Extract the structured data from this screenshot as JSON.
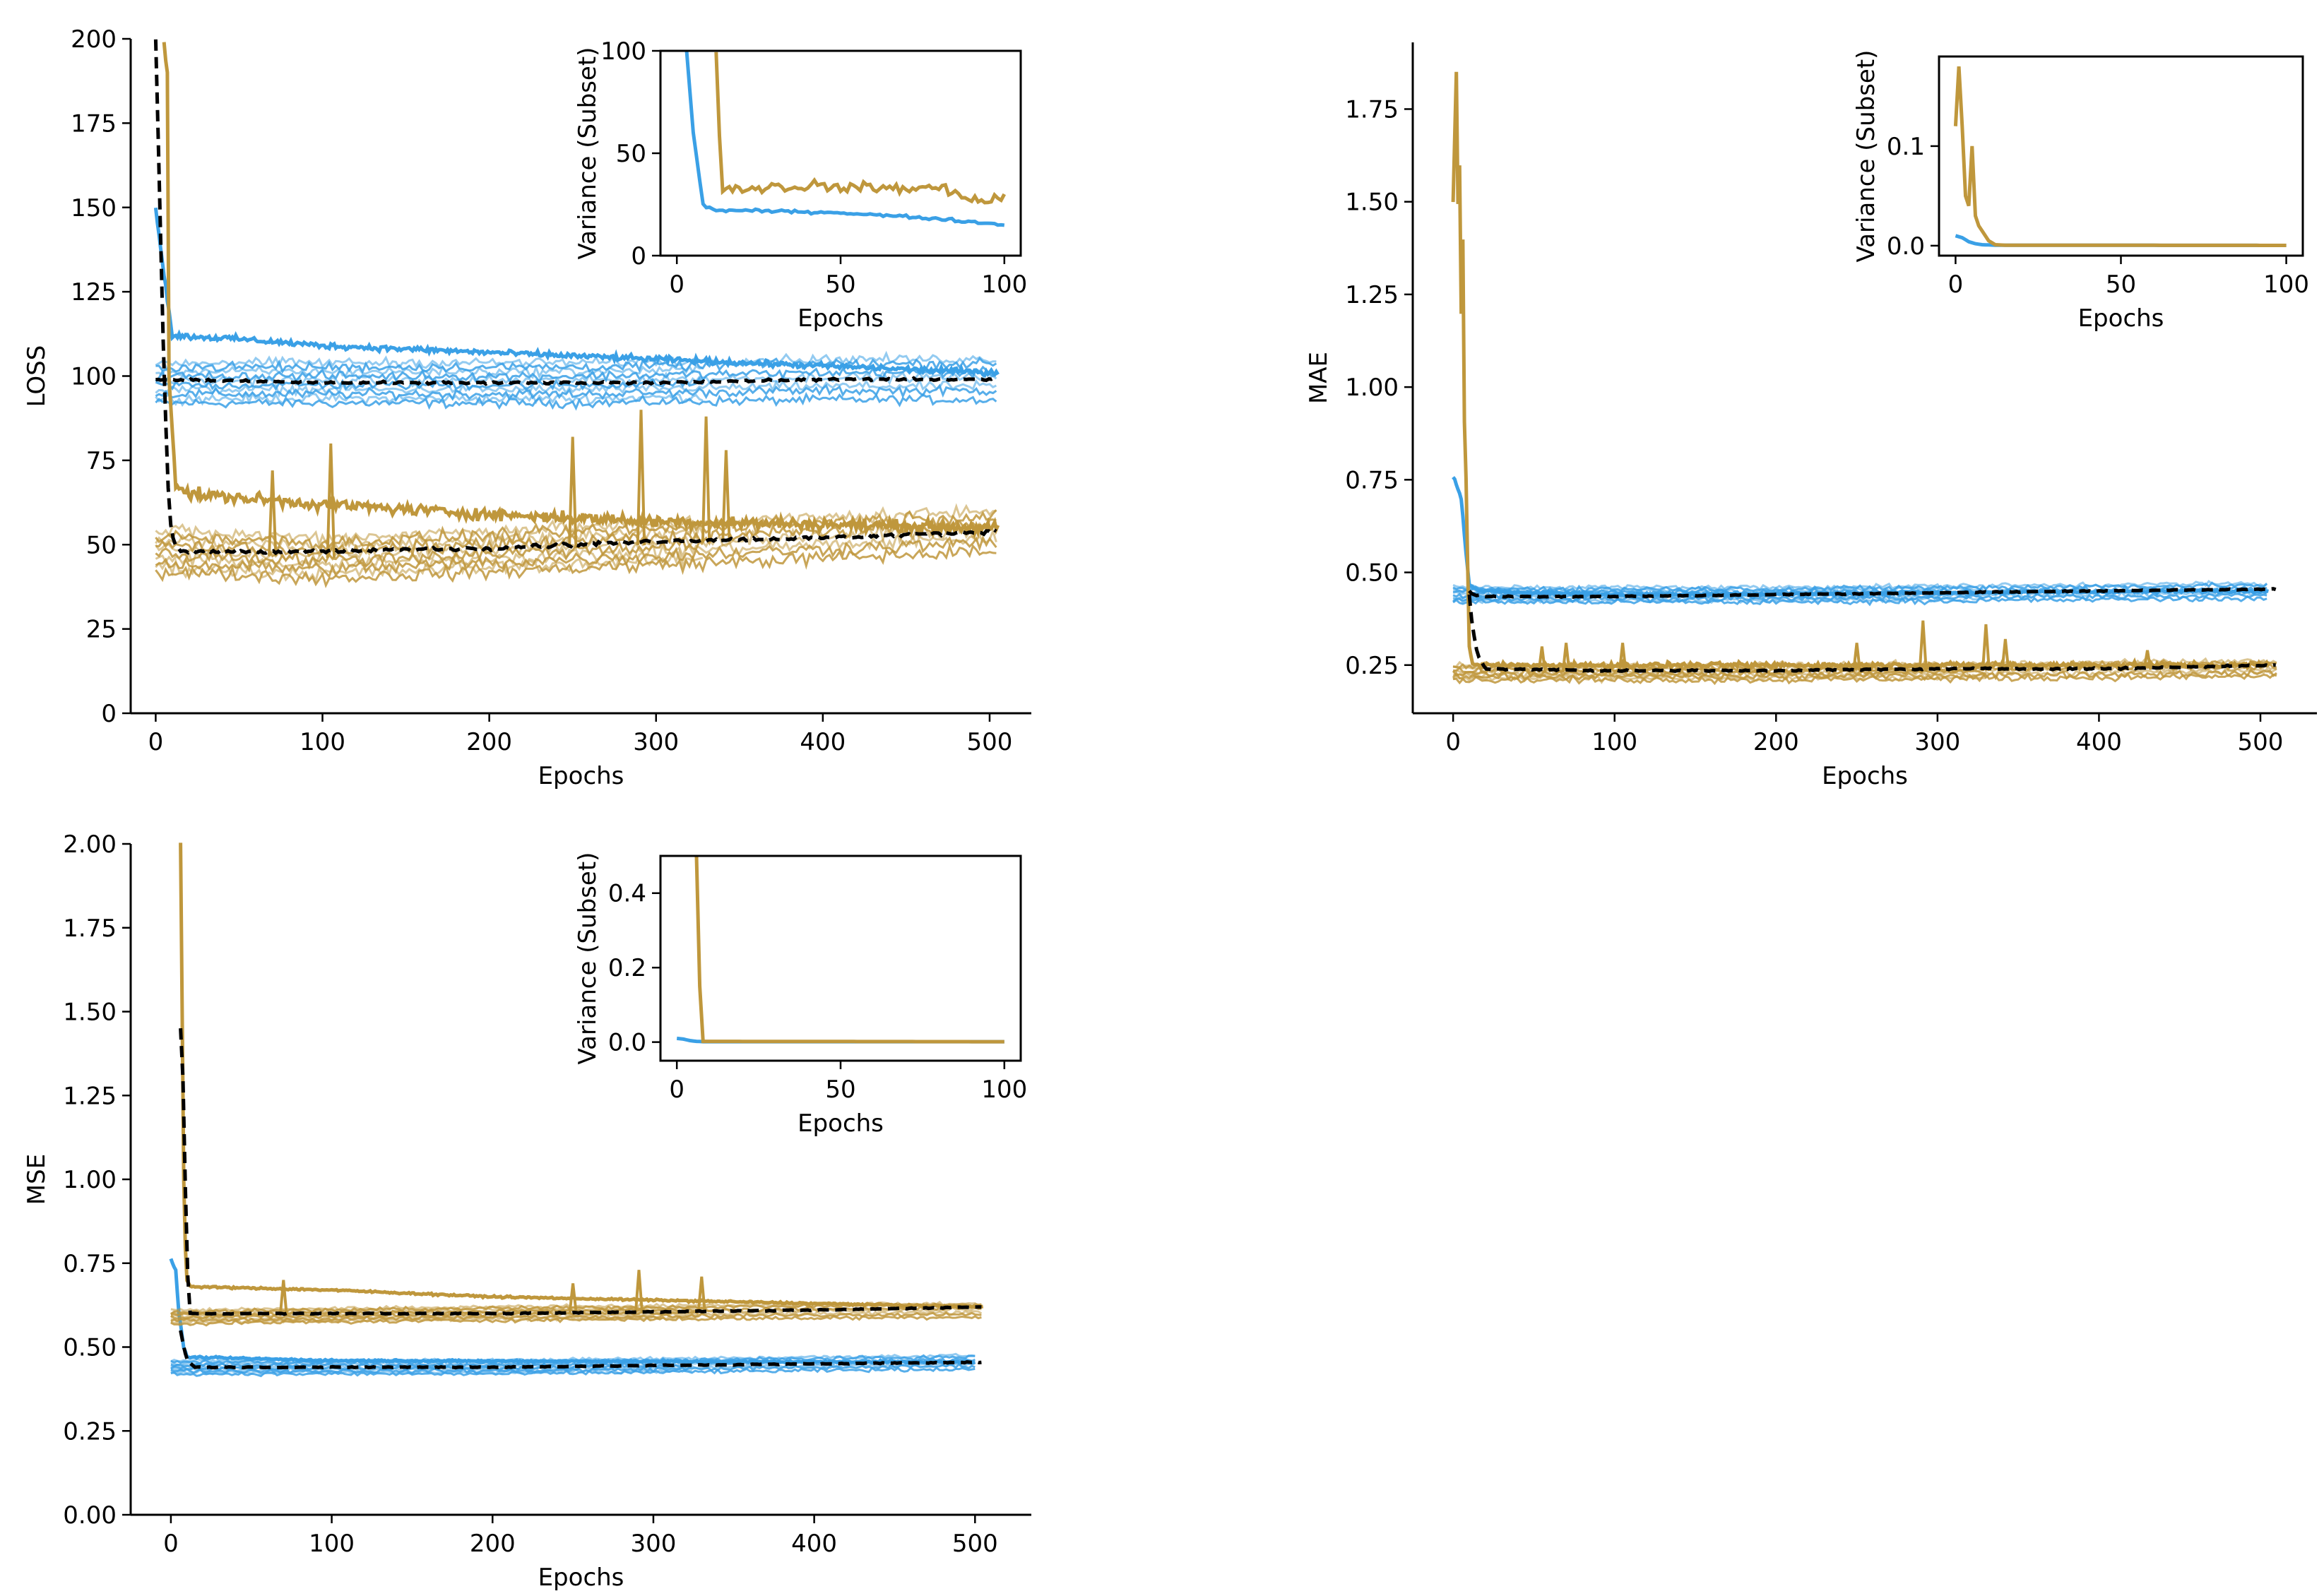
{
  "figure": {
    "colors": {
      "blue": "#3aa0e6",
      "gold": "#bf973c",
      "mean": "#000000"
    }
  },
  "chart_data": [
    {
      "id": "loss-main",
      "type": "line",
      "title": "",
      "xlabel": "Epochs",
      "ylabel": "LOSS",
      "xlim": [
        -15,
        525
      ],
      "ylim": [
        0,
        200
      ],
      "xticks": [
        0,
        100,
        200,
        300,
        400,
        500
      ],
      "yticks": [
        0,
        25,
        50,
        75,
        100,
        125,
        150,
        175,
        200
      ],
      "ytick_labels": [
        "0",
        "25",
        "50",
        "75",
        "100",
        "125",
        "150",
        "175",
        "200"
      ],
      "grid": false,
      "series": [
        {
          "group": "blue",
          "style": "band",
          "x_start": 0,
          "x_end": 505,
          "center": [
            [
              0,
              98
            ],
            [
              100,
              98
            ],
            [
              250,
              98
            ],
            [
              400,
              99
            ],
            [
              505,
              99
            ]
          ],
          "half_width": 6,
          "noise": 2
        },
        {
          "group": "blue",
          "style": "solid",
          "x": [
            0,
            5,
            10,
            50,
            100,
            200,
            300,
            400,
            505
          ],
          "y": [
            150,
            130,
            112,
            111,
            109,
            107,
            105,
            103,
            101
          ],
          "noise": 1.2
        },
        {
          "group": "gold",
          "style": "band",
          "x_start": 0,
          "x_end": 505,
          "center": [
            [
              0,
              48
            ],
            [
              100,
              46
            ],
            [
              200,
              48
            ],
            [
              300,
              50
            ],
            [
              400,
              52
            ],
            [
              505,
              54
            ]
          ],
          "half_width": 6,
          "noise": 3
        },
        {
          "group": "gold",
          "style": "solid",
          "x": [
            5,
            7,
            8,
            12,
            20,
            100,
            200,
            300,
            400,
            505
          ],
          "y": [
            200,
            190,
            100,
            68,
            65,
            62,
            59,
            57,
            56,
            55
          ],
          "noise": 2.5
        },
        {
          "group": "gold",
          "style": "spikes",
          "x": [
            70,
            105,
            250,
            291,
            330,
            342
          ],
          "y": [
            72,
            80,
            82,
            90,
            88,
            78
          ]
        },
        {
          "group": "mean",
          "style": "dashed",
          "x": [
            0,
            3,
            5,
            8,
            10,
            12,
            15,
            100,
            200,
            300,
            400,
            505
          ],
          "y": [
            200,
            140,
            100,
            60,
            52,
            50,
            48,
            48,
            49,
            51,
            52,
            54
          ],
          "noise": 0.8
        },
        {
          "group": "mean",
          "style": "dashed",
          "x": [
            0,
            100,
            200,
            300,
            400,
            505
          ],
          "y": [
            99,
            98,
            98,
            98,
            99,
            99
          ],
          "noise": 0.5
        }
      ],
      "inset": {
        "type": "line",
        "xlabel": "Epochs",
        "ylabel": "Variance (Subset)",
        "xlim": [
          -5,
          105
        ],
        "ylim": [
          0,
          100
        ],
        "xticks": [
          0,
          50,
          100
        ],
        "yticks": [
          0,
          50,
          100
        ],
        "ytick_labels": [
          "0",
          "50",
          "100"
        ],
        "series": [
          {
            "group": "blue",
            "x": [
              3,
              5,
              8,
              12,
              20,
              50,
              80,
              100
            ],
            "y": [
              100,
              60,
              25,
              22,
              22,
              21,
              18,
              15
            ],
            "noise": 1
          },
          {
            "group": "gold",
            "x": [
              12,
              13,
              14,
              20,
              40,
              60,
              80,
              95,
              100
            ],
            "y": [
              100,
              60,
              32,
              33,
              34,
              33,
              33,
              26,
              29
            ],
            "noise": 4
          }
        ]
      }
    },
    {
      "id": "mae-main",
      "type": "line",
      "title": "",
      "xlabel": "Epochs",
      "ylabel": "MAE",
      "xlim": [
        -25,
        535
      ],
      "ylim": [
        0.12,
        1.93
      ],
      "xticks": [
        0,
        100,
        200,
        300,
        400,
        500
      ],
      "yticks": [
        0.25,
        0.5,
        0.75,
        1.0,
        1.25,
        1.5,
        1.75
      ],
      "ytick_labels": [
        "0.25",
        "0.50",
        "0.75",
        "1.00",
        "1.25",
        "1.50",
        "1.75"
      ],
      "grid": false,
      "series": [
        {
          "group": "blue",
          "style": "band",
          "x_start": 0,
          "x_end": 505,
          "center": [
            [
              0,
              0.44
            ],
            [
              200,
              0.44
            ],
            [
              505,
              0.45
            ]
          ],
          "half_width": 0.02,
          "noise": 0.01
        },
        {
          "group": "blue",
          "style": "solid",
          "x": [
            0,
            5,
            8,
            10,
            15,
            100,
            505
          ],
          "y": [
            0.76,
            0.7,
            0.55,
            0.47,
            0.45,
            0.44,
            0.45
          ],
          "noise": 0.005
        },
        {
          "group": "gold",
          "style": "band",
          "x_start": 0,
          "x_end": 510,
          "center": [
            [
              0,
              0.23
            ],
            [
              200,
              0.23
            ],
            [
              510,
              0.24
            ]
          ],
          "half_width": 0.02,
          "noise": 0.012
        },
        {
          "group": "gold",
          "style": "solid",
          "x": [
            0,
            2,
            3,
            4,
            5,
            6,
            7,
            8,
            10,
            12,
            505
          ],
          "y": [
            1.5,
            1.85,
            1.5,
            1.6,
            1.2,
            1.4,
            0.9,
            0.75,
            0.3,
            0.25,
            0.25
          ],
          "noise": 0.01
        },
        {
          "group": "gold",
          "style": "spikes",
          "x": [
            55,
            70,
            105,
            250,
            291,
            330,
            342,
            430
          ],
          "y": [
            0.3,
            0.31,
            0.31,
            0.31,
            0.37,
            0.36,
            0.32,
            0.29
          ]
        },
        {
          "group": "mean",
          "style": "dashed",
          "x": [
            10,
            12,
            15,
            20,
            100,
            200,
            300,
            400,
            510
          ],
          "y": [
            0.44,
            0.35,
            0.28,
            0.24,
            0.235,
            0.235,
            0.24,
            0.24,
            0.25
          ],
          "noise": 0.003
        },
        {
          "group": "mean",
          "style": "dashed",
          "x": [
            10,
            12,
            20,
            100,
            200,
            300,
            400,
            510
          ],
          "y": [
            0.45,
            0.44,
            0.435,
            0.435,
            0.44,
            0.445,
            0.45,
            0.455
          ],
          "noise": 0.002
        }
      ],
      "inset": {
        "type": "line",
        "xlabel": "Epochs",
        "ylabel": "Variance (Subset)",
        "xlim": [
          -5,
          105
        ],
        "ylim": [
          -0.01,
          0.19
        ],
        "xticks": [
          0,
          50,
          100
        ],
        "yticks": [
          0.0,
          0.1
        ],
        "ytick_labels": [
          "0.0",
          "0.1"
        ],
        "series": [
          {
            "group": "blue",
            "x": [
              0,
              2,
              4,
              6,
              8,
              12,
              100
            ],
            "y": [
              0.01,
              0.008,
              0.004,
              0.002,
              0.001,
              0.0005,
              0.0003
            ],
            "noise": 0
          },
          {
            "group": "gold",
            "x": [
              0,
              1,
              2,
              3,
              4,
              5,
              6,
              7,
              8,
              10,
              12,
              15,
              100
            ],
            "y": [
              0.12,
              0.18,
              0.12,
              0.05,
              0.04,
              0.1,
              0.03,
              0.02,
              0.015,
              0.005,
              0.001,
              0.0005,
              0.0003
            ],
            "noise": 0
          }
        ]
      }
    },
    {
      "id": "mse-main",
      "type": "line",
      "title": "",
      "xlabel": "Epochs",
      "ylabel": "MSE",
      "xlim": [
        -25,
        535
      ],
      "ylim": [
        0,
        2.0
      ],
      "xticks": [
        0,
        100,
        200,
        300,
        400,
        500
      ],
      "yticks": [
        0.0,
        0.25,
        0.5,
        0.75,
        1.0,
        1.25,
        1.5,
        1.75,
        2.0
      ],
      "ytick_labels": [
        "0.00",
        "0.25",
        "0.50",
        "0.75",
        "1.00",
        "1.25",
        "1.50",
        "1.75",
        "2.00"
      ],
      "grid": false,
      "series": [
        {
          "group": "blue",
          "style": "band",
          "x_start": 0,
          "x_end": 500,
          "center": [
            [
              0,
              0.44
            ],
            [
              200,
              0.44
            ],
            [
              500,
              0.455
            ]
          ],
          "half_width": 0.02,
          "noise": 0.008
        },
        {
          "group": "blue",
          "style": "solid",
          "x": [
            0,
            3,
            5,
            8,
            10,
            100,
            500
          ],
          "y": [
            0.76,
            0.73,
            0.6,
            0.5,
            0.47,
            0.46,
            0.455
          ],
          "noise": 0.004
        },
        {
          "group": "gold",
          "style": "band",
          "x_start": 0,
          "x_end": 505,
          "center": [
            [
              0,
              0.59
            ],
            [
              200,
              0.6
            ],
            [
              505,
              0.61
            ]
          ],
          "half_width": 0.02,
          "noise": 0.008
        },
        {
          "group": "gold",
          "style": "solid",
          "x": [
            6,
            7,
            8,
            9,
            10,
            12,
            100,
            200,
            300,
            400,
            505
          ],
          "y": [
            2.0,
            1.5,
            1.0,
            0.8,
            0.7,
            0.68,
            0.67,
            0.65,
            0.64,
            0.63,
            0.62
          ],
          "noise": 0.004
        },
        {
          "group": "gold",
          "style": "spikes",
          "x": [
            70,
            250,
            291,
            330
          ],
          "y": [
            0.7,
            0.69,
            0.73,
            0.71
          ]
        },
        {
          "group": "mean",
          "style": "dashed",
          "x": [
            6,
            7,
            8,
            10,
            12,
            20,
            100,
            200,
            300,
            400,
            505
          ],
          "y": [
            1.45,
            1.4,
            1.2,
            0.75,
            0.6,
            0.6,
            0.6,
            0.6,
            0.605,
            0.61,
            0.62
          ],
          "noise": 0.002
        },
        {
          "group": "mean",
          "style": "dashed",
          "x": [
            6,
            8,
            10,
            15,
            100,
            200,
            300,
            400,
            505
          ],
          "y": [
            0.55,
            0.5,
            0.46,
            0.44,
            0.44,
            0.44,
            0.445,
            0.45,
            0.455
          ],
          "noise": 0.002
        }
      ],
      "inset": {
        "type": "line",
        "xlabel": "Epochs",
        "ylabel": "Variance (Subset)",
        "xlim": [
          -5,
          105
        ],
        "ylim": [
          -0.05,
          0.5
        ],
        "xticks": [
          0,
          50,
          100
        ],
        "yticks": [
          0.0,
          0.2,
          0.4
        ],
        "ytick_labels": [
          "0.0",
          "0.2",
          "0.4"
        ],
        "series": [
          {
            "group": "blue",
            "x": [
              0,
              2,
              4,
              6,
              8,
              100
            ],
            "y": [
              0.01,
              0.008,
              0.004,
              0.002,
              0.001,
              0.001
            ],
            "noise": 0
          },
          {
            "group": "gold",
            "x": [
              6,
              7,
              8,
              100
            ],
            "y": [
              0.5,
              0.15,
              0.002,
              0.001
            ],
            "noise": 0
          }
        ]
      }
    }
  ]
}
